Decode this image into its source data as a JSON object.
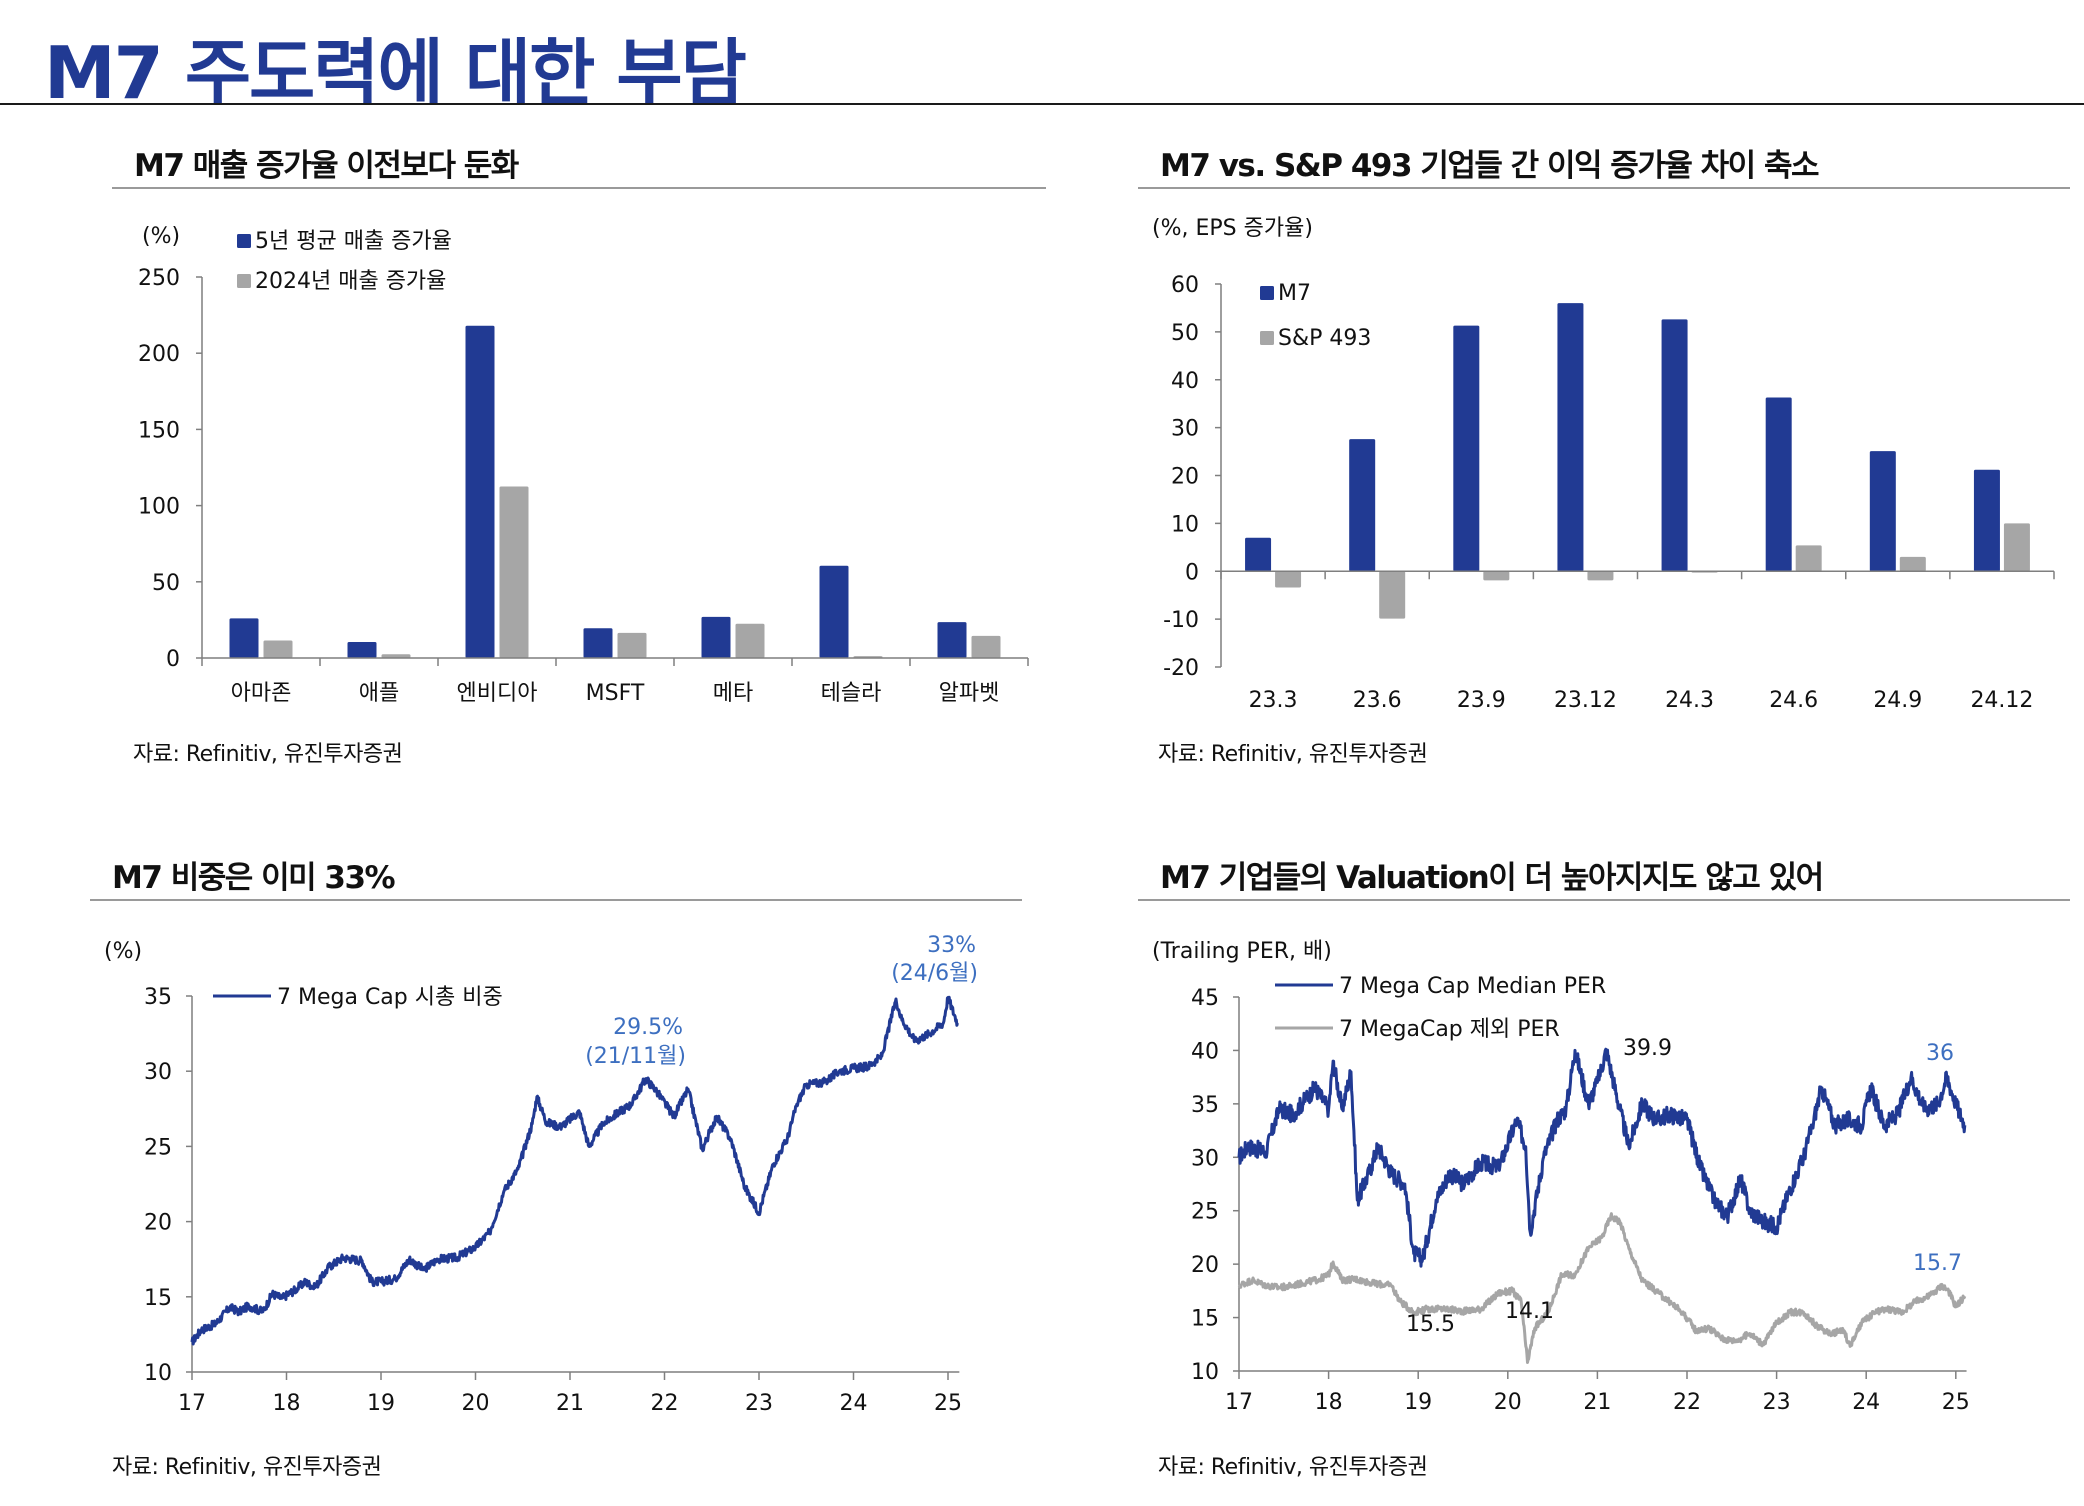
{
  "page": {
    "title": "M7 주도력에 대한 부담"
  },
  "panels": {
    "top_left": {
      "title": "M7 매출 증가율 이전보다 둔화",
      "source": "자료: Refinitiv, 유진투자증권"
    },
    "top_right": {
      "title": "M7 vs. S&P 493 기업들 간 이익 증가율 차이 축소",
      "source": "자료: Refinitiv, 유진투자증권"
    },
    "bottom_left": {
      "title": "M7 비중은 이미 33%",
      "source": "자료: Refinitiv, 유진투자증권"
    },
    "bottom_right": {
      "title": "M7 기업들의 Valuation이 더 높아지지도 않고 있어",
      "source": "자료: Refinitiv, 유진투자증권"
    }
  },
  "colors": {
    "navy": "#213a93",
    "gray": "#a6a6a6",
    "annotation_blue": "#3d6fc0",
    "axis": "#7f7f7f"
  },
  "chart_data": [
    {
      "id": "revenue_growth",
      "type": "bar",
      "title": "M7 매출 증가율 이전보다 둔화",
      "unit_label": "(%)",
      "categories": [
        "아마존",
        "애플",
        "엔비디아",
        "MSFT",
        "메타",
        "테슬라",
        "알파벳"
      ],
      "series": [
        {
          "name": "5년 평균 매출 증가율",
          "color": "#213a93",
          "values": [
            26,
            10.5,
            218,
            19.5,
            27,
            60.5,
            23.5
          ]
        },
        {
          "name": "2024년 매출 증가율",
          "color": "#a6a6a6",
          "values": [
            11.5,
            2.5,
            112.5,
            16.5,
            22.5,
            1.2,
            14.5
          ]
        }
      ],
      "yticks": [
        0,
        50,
        100,
        150,
        200,
        250
      ],
      "ylim": [
        0,
        250
      ],
      "legend": "top-left",
      "grid": false
    },
    {
      "id": "eps_growth",
      "type": "bar",
      "title": "M7 vs. S&P 493 기업들 간 이익 증가율 차이 축소",
      "unit_label": "(%, EPS 증가율)",
      "categories": [
        "23.3",
        "23.6",
        "23.9",
        "23.12",
        "24.3",
        "24.6",
        "24.9",
        "24.12"
      ],
      "series": [
        {
          "name": "M7",
          "color": "#213a93",
          "values": [
            7.0,
            27.6,
            51.3,
            56.0,
            52.6,
            36.3,
            25.1,
            21.2
          ]
        },
        {
          "name": "S&P 493",
          "color": "#a6a6a6",
          "values": [
            -3.4,
            -9.9,
            -1.9,
            -1.9,
            -0.3,
            5.4,
            3.0,
            10.0
          ]
        }
      ],
      "yticks": [
        -20,
        -10,
        0,
        10,
        20,
        30,
        40,
        50,
        60
      ],
      "ylim": [
        -20,
        60
      ],
      "legend": "top-left",
      "grid": false
    },
    {
      "id": "m7_weight",
      "type": "line",
      "title": "M7 비중은 이미 33%",
      "unit_label": "(%)",
      "xticks": [
        "17",
        "18",
        "19",
        "20",
        "21",
        "22",
        "23",
        "24",
        "25"
      ],
      "xlim": [
        2017,
        2025.12
      ],
      "ylim": [
        10,
        35
      ],
      "yticks": [
        10,
        15,
        20,
        25,
        30,
        35
      ],
      "legend": "top-left",
      "grid": false,
      "series": [
        {
          "name": "7 Mega Cap 시총 비중",
          "color": "#213a93",
          "x": [
            2017.0,
            2017.1,
            2017.25,
            2017.4,
            2017.5,
            2017.6,
            2017.75,
            2017.85,
            2017.95,
            2018.1,
            2018.2,
            2018.3,
            2018.45,
            2018.6,
            2018.7,
            2018.8,
            2018.9,
            2019.0,
            2019.15,
            2019.3,
            2019.45,
            2019.6,
            2019.8,
            2020.0,
            2020.15,
            2020.3,
            2020.45,
            2020.6,
            2020.65,
            2020.75,
            2020.9,
            2021.1,
            2021.2,
            2021.35,
            2021.5,
            2021.65,
            2021.8,
            2021.9,
            2022.1,
            2022.25,
            2022.4,
            2022.55,
            2022.7,
            2022.85,
            2023.0,
            2023.15,
            2023.3,
            2023.4,
            2023.5,
            2023.7,
            2023.85,
            2024.0,
            2024.15,
            2024.3,
            2024.45,
            2024.5,
            2024.65,
            2024.8,
            2024.95,
            2025.0,
            2025.1
          ],
          "y": [
            12.0,
            12.8,
            13.2,
            14.3,
            14.0,
            14.4,
            14.0,
            15.2,
            14.9,
            15.5,
            16.0,
            15.6,
            17.0,
            17.6,
            17.5,
            17.4,
            16.0,
            16.0,
            16.2,
            17.5,
            16.8,
            17.5,
            17.6,
            18.3,
            19.3,
            22.0,
            23.5,
            26.5,
            28.3,
            26.6,
            26.3,
            27.3,
            25.0,
            26.5,
            27.2,
            27.8,
            29.5,
            28.8,
            27.0,
            28.8,
            24.8,
            27.0,
            25.5,
            22.3,
            20.6,
            23.8,
            25.5,
            27.8,
            29.1,
            29.3,
            30.0,
            30.2,
            30.3,
            31.0,
            34.8,
            33.6,
            32.0,
            32.5,
            33.2,
            34.9,
            33.2
          ]
        }
      ],
      "annotations": [
        {
          "text": [
            "29.5%",
            "(21/11월)"
          ],
          "x": 2021.9,
          "y": 29.5
        },
        {
          "text": [
            "33%",
            "(24/6월)"
          ],
          "x": 2024.9,
          "y": 35
        }
      ]
    },
    {
      "id": "trailing_per",
      "type": "line",
      "title": "M7 기업들의 Valuation이 더 높아지지도 않고 있어",
      "unit_label": "(Trailing PER, 배)",
      "xticks": [
        "17",
        "18",
        "19",
        "20",
        "21",
        "22",
        "23",
        "24",
        "25"
      ],
      "xlim": [
        2017,
        2025.12
      ],
      "ylim": [
        10,
        45
      ],
      "yticks": [
        10,
        15,
        20,
        25,
        30,
        35,
        40,
        45
      ],
      "legend": "top-left",
      "grid": false,
      "series": [
        {
          "name": "7 Mega Cap Median PER",
          "color": "#213a93",
          "x": [
            2017.0,
            2017.1,
            2017.3,
            2017.45,
            2017.6,
            2017.75,
            2017.85,
            2018.0,
            2018.05,
            2018.15,
            2018.25,
            2018.32,
            2018.45,
            2018.55,
            2018.7,
            2018.85,
            2018.95,
            2019.05,
            2019.2,
            2019.35,
            2019.5,
            2019.7,
            2019.9,
            2020.1,
            2020.2,
            2020.25,
            2020.4,
            2020.55,
            2020.65,
            2020.75,
            2020.9,
            2021.0,
            2021.1,
            2021.25,
            2021.35,
            2021.5,
            2021.65,
            2021.8,
            2022.0,
            2022.15,
            2022.3,
            2022.45,
            2022.6,
            2022.7,
            2022.85,
            2023.0,
            2023.15,
            2023.3,
            2023.4,
            2023.5,
            2023.65,
            2023.8,
            2023.95,
            2024.05,
            2024.2,
            2024.35,
            2024.5,
            2024.65,
            2024.8,
            2024.9,
            2025.0,
            2025.1
          ],
          "y": [
            30.0,
            31.0,
            30.5,
            34.5,
            34.0,
            35.5,
            36.5,
            34.5,
            39.0,
            34.5,
            38.0,
            26.0,
            28.5,
            31.0,
            28.5,
            27.5,
            21.0,
            20.5,
            26.0,
            28.5,
            27.5,
            29.5,
            29.0,
            33.5,
            31.0,
            23.0,
            30.0,
            33.5,
            34.5,
            40.0,
            35.0,
            37.0,
            40.0,
            34.5,
            31.0,
            35.0,
            33.5,
            34.0,
            33.5,
            29.0,
            26.0,
            24.5,
            28.0,
            25.0,
            24.0,
            23.5,
            27.0,
            30.0,
            33.0,
            36.5,
            33.0,
            33.5,
            33.0,
            36.5,
            33.0,
            34.0,
            37.5,
            34.5,
            35.0,
            37.5,
            35.0,
            33.0
          ]
        },
        {
          "name": "7 MegaCap 제외 PER",
          "color": "#a6a6a6",
          "x": [
            2017.0,
            2017.15,
            2017.3,
            2017.45,
            2017.6,
            2017.75,
            2017.9,
            2018.0,
            2018.05,
            2018.15,
            2018.3,
            2018.5,
            2018.7,
            2018.8,
            2018.95,
            2019.1,
            2019.3,
            2019.5,
            2019.7,
            2019.9,
            2020.05,
            2020.15,
            2020.22,
            2020.3,
            2020.45,
            2020.6,
            2020.75,
            2020.9,
            2021.05,
            2021.15,
            2021.25,
            2021.35,
            2021.5,
            2021.65,
            2021.8,
            2021.95,
            2022.1,
            2022.25,
            2022.4,
            2022.55,
            2022.7,
            2022.85,
            2023.0,
            2023.15,
            2023.3,
            2023.45,
            2023.6,
            2023.75,
            2023.82,
            2023.95,
            2024.1,
            2024.25,
            2024.4,
            2024.55,
            2024.7,
            2024.85,
            2024.92,
            2025.0,
            2025.1
          ],
          "y": [
            18.0,
            18.5,
            18.0,
            17.8,
            18.0,
            18.3,
            18.6,
            19.0,
            20.2,
            18.5,
            18.6,
            18.2,
            18.0,
            16.5,
            15.5,
            15.8,
            15.8,
            15.6,
            15.8,
            17.3,
            17.5,
            16.5,
            10.8,
            14.0,
            15.5,
            19.0,
            19.0,
            21.5,
            22.5,
            24.5,
            24.0,
            21.5,
            18.5,
            17.5,
            16.5,
            15.5,
            13.8,
            14.0,
            13.0,
            12.8,
            13.5,
            12.5,
            14.5,
            15.5,
            15.5,
            14.2,
            13.5,
            13.8,
            12.3,
            14.5,
            15.5,
            15.8,
            15.5,
            16.5,
            17.0,
            18.0,
            17.5,
            16.0,
            17.0
          ]
        }
      ],
      "annotations": [
        {
          "text": [
            "39.9"
          ],
          "x": 2021.3,
          "y": 39.9,
          "color": "black"
        },
        {
          "text": [
            "36"
          ],
          "x": 2024.9,
          "y": 36,
          "color": "blue"
        },
        {
          "text": [
            "15.5"
          ],
          "x": 2019.1,
          "y": 15.5,
          "color": "black"
        },
        {
          "text": [
            "14.1"
          ],
          "x": 2020.2,
          "y": 14.1,
          "color": "black"
        },
        {
          "text": [
            "15.7"
          ],
          "x": 2024.9,
          "y": 15.7,
          "color": "blue"
        }
      ]
    }
  ]
}
